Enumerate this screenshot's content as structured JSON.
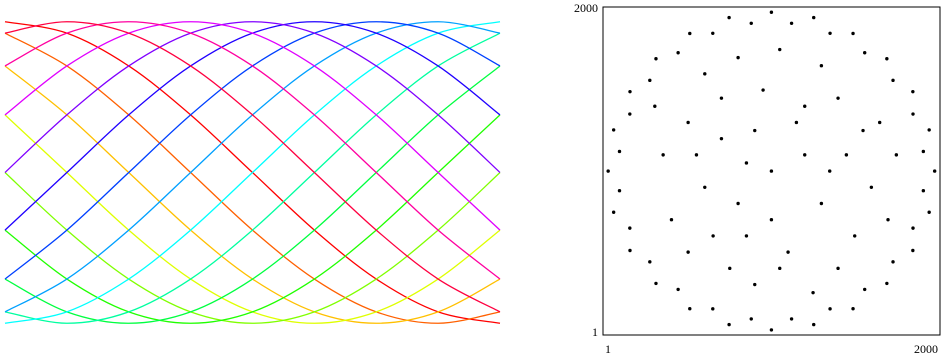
{
  "chart_data": [
    {
      "type": "line",
      "x": [
        0,
        1,
        2,
        3,
        4,
        5,
        6,
        7,
        8
      ],
      "xlim": [
        0,
        8
      ],
      "ylim": [
        0,
        100
      ],
      "series": [
        {
          "color": "#ff0000",
          "values": [
            95,
            91.6,
            81.8,
            67.2,
            50,
            32.8,
            18.2,
            8.4,
            5
          ]
        },
        {
          "color": "#ff6000",
          "values": [
            91.6,
            81.8,
            67.2,
            50,
            32.8,
            18.2,
            8.4,
            5,
            8.4
          ]
        },
        {
          "color": "#ffc000",
          "values": [
            81.8,
            67.2,
            50,
            32.8,
            18.2,
            8.4,
            5,
            8.4,
            18.2
          ]
        },
        {
          "color": "#dfff00",
          "values": [
            67.2,
            50,
            32.8,
            18.2,
            8.4,
            5,
            8.4,
            18.2,
            32.8
          ]
        },
        {
          "color": "#80ff00",
          "values": [
            50,
            32.8,
            18.2,
            8.4,
            5,
            8.4,
            18.2,
            32.8,
            50
          ]
        },
        {
          "color": "#20ff00",
          "values": [
            32.8,
            18.2,
            8.4,
            5,
            8.4,
            18.2,
            32.8,
            50,
            67.2
          ]
        },
        {
          "color": "#00ff40",
          "values": [
            18.2,
            8.4,
            5,
            8.4,
            18.2,
            32.8,
            50,
            67.2,
            81.8
          ]
        },
        {
          "color": "#00ffa0",
          "values": [
            8.4,
            5,
            8.4,
            18.2,
            32.8,
            50,
            67.2,
            81.8,
            91.6
          ]
        },
        {
          "color": "#00ffff",
          "values": [
            5,
            8.4,
            18.2,
            32.8,
            50,
            67.2,
            81.8,
            91.6,
            95
          ]
        },
        {
          "color": "#00a0ff",
          "values": [
            8.4,
            18.2,
            32.8,
            50,
            67.2,
            81.8,
            91.6,
            95,
            91.6
          ]
        },
        {
          "color": "#0040ff",
          "values": [
            18.2,
            32.8,
            50,
            67.2,
            81.8,
            91.6,
            95,
            91.6,
            81.8
          ]
        },
        {
          "color": "#2000ff",
          "values": [
            32.8,
            50,
            67.2,
            81.8,
            91.6,
            95,
            91.6,
            81.8,
            67.2
          ]
        },
        {
          "color": "#8000ff",
          "values": [
            50,
            67.2,
            81.8,
            91.6,
            95,
            91.6,
            81.8,
            67.2,
            50
          ]
        },
        {
          "color": "#e000ff",
          "values": [
            67.2,
            81.8,
            91.6,
            95,
            91.6,
            81.8,
            67.2,
            50,
            32.8
          ]
        },
        {
          "color": "#ff00a0",
          "values": [
            81.8,
            91.6,
            95,
            91.6,
            81.8,
            67.2,
            50,
            32.8,
            18.2
          ]
        },
        {
          "color": "#ff0040",
          "values": [
            91.6,
            95,
            91.6,
            81.8,
            67.2,
            50,
            32.8,
            18.2,
            8.4
          ]
        }
      ]
    },
    {
      "type": "scatter",
      "color": "#000000",
      "xlim": [
        1,
        2000
      ],
      "ylim": [
        1,
        2000
      ],
      "xticks": [
        1,
        2000
      ],
      "yticks": [
        1,
        2000
      ],
      "x": [
        1980,
        1947,
        1849,
        1693,
        1490,
        1254,
        1000,
        746,
        510,
        307,
        151,
        53,
        20,
        53,
        151,
        307,
        510,
        746,
        1000,
        1254,
        1490,
        1693,
        1849,
        1947,
        1912,
        1850,
        1730,
        1560,
        1352,
        1121,
        879,
        648,
        440,
        270,
        150,
        88,
        88,
        150,
        270,
        440,
        648,
        879,
        1121,
        1352,
        1560,
        1730,
        1850,
        1912,
        1000,
        700,
        1300,
        850,
        1200,
        600,
        1450,
        950,
        1100,
        500,
        1500,
        750,
        1300,
        400,
        1650,
        900,
        1600,
        350,
        1200,
        800,
        1050,
        600,
        1400,
        500,
        1700,
        1250,
        800,
        300,
        1750,
        1000,
        1150,
        650,
        900,
        1400,
        550,
        1550,
        1050,
        700,
        1350,
        850
      ],
      "y": [
        1000,
        1254,
        1490,
        1693,
        1849,
        1947,
        1980,
        1947,
        1849,
        1693,
        1490,
        1254,
        1000,
        746,
        510,
        307,
        151,
        53,
        20,
        53,
        151,
        307,
        510,
        746,
        1121,
        1352,
        1560,
        1730,
        1850,
        1912,
        1912,
        1850,
        1730,
        1560,
        1352,
        1121,
        879,
        648,
        440,
        270,
        150,
        88,
        88,
        150,
        270,
        440,
        648,
        879,
        1000,
        1200,
        800,
        600,
        1400,
        900,
        1100,
        1500,
        500,
        1300,
        600,
        400,
        1650,
        700,
        1300,
        300,
        900,
        1100,
        1100,
        800,
        1750,
        1600,
        400,
        500,
        700,
        250,
        1700,
        1400,
        1100,
        700,
        1300,
        600,
        1250,
        1450,
        1100,
        1250,
        400,
        1450,
        1000,
        1050
      ]
    }
  ]
}
